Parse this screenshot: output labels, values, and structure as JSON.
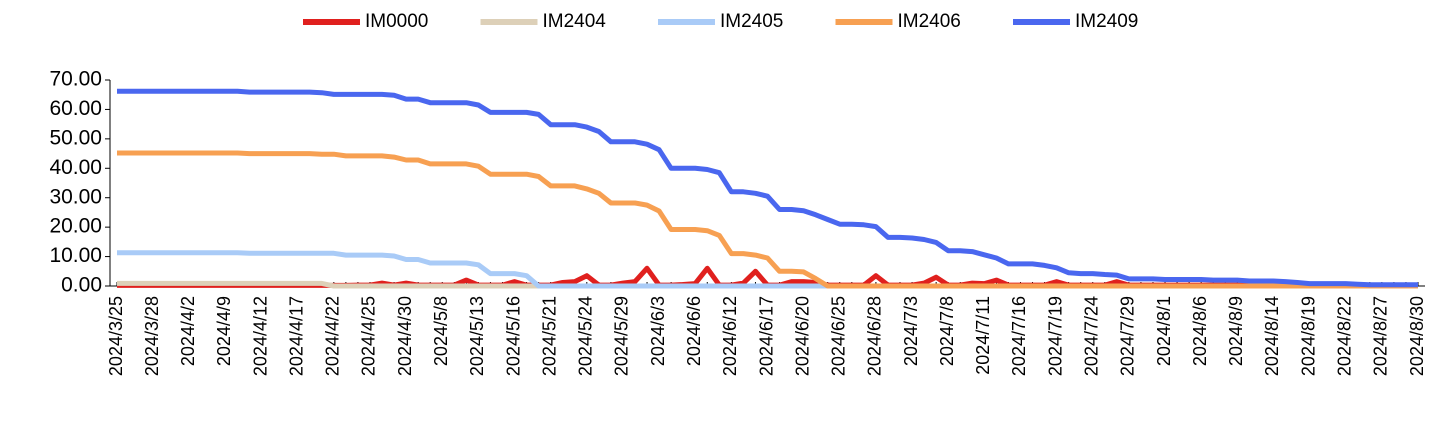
{
  "chart_data": {
    "type": "line",
    "categories": [
      "2024/3/25",
      null,
      null,
      "2024/3/28",
      null,
      null,
      "2024/4/2",
      null,
      null,
      "2024/4/9",
      null,
      null,
      "2024/4/12",
      null,
      null,
      "2024/4/17",
      null,
      null,
      "2024/4/22",
      null,
      null,
      "2024/4/25",
      null,
      null,
      "2024/4/30",
      null,
      null,
      "2024/5/8",
      null,
      null,
      "2024/5/13",
      null,
      null,
      "2024/5/16",
      null,
      null,
      "2024/5/21",
      null,
      null,
      "2024/5/24",
      null,
      null,
      "2024/5/29",
      null,
      null,
      "2024/6/3",
      null,
      null,
      "2024/6/6",
      null,
      null,
      "2024/6/12",
      null,
      null,
      "2024/6/17",
      null,
      null,
      "2024/6/20",
      null,
      null,
      "2024/6/25",
      null,
      null,
      "2024/6/28",
      null,
      null,
      "2024/7/3",
      null,
      null,
      "2024/7/8",
      null,
      null,
      "2024/7/11",
      null,
      null,
      "2024/7/16",
      null,
      null,
      "2024/7/19",
      null,
      null,
      "2024/7/24",
      null,
      null,
      "2024/7/29",
      null,
      null,
      "2024/8/1",
      null,
      null,
      "2024/8/6",
      null,
      null,
      "2024/8/9",
      null,
      null,
      "2024/8/14",
      null,
      null,
      "2024/8/19",
      null,
      null,
      "2024/8/22",
      null,
      null,
      "2024/8/27",
      null,
      null,
      "2024/8/30"
    ],
    "series": [
      {
        "name": "IM0000",
        "color": "#e0201e",
        "values": [
          0.2,
          0.2,
          0.2,
          0.2,
          0.2,
          0.2,
          0.2,
          0.2,
          0.2,
          0.2,
          0.2,
          0.2,
          0.2,
          0.2,
          0.2,
          0.2,
          0.2,
          0.2,
          0.2,
          0.2,
          0.3,
          0.3,
          1,
          0.3,
          1,
          0.3,
          0.3,
          0.3,
          0.3,
          2,
          0.3,
          0.3,
          0.3,
          1.5,
          0.3,
          0.3,
          0.3,
          1.2,
          1.5,
          3.5,
          0.3,
          0.3,
          1,
          1.5,
          6,
          0.3,
          0.3,
          0.5,
          0.8,
          6,
          0.3,
          0.3,
          1,
          5,
          0.3,
          0.3,
          1.5,
          1.5,
          1.2,
          0.3,
          0.3,
          0.3,
          0.3,
          3.5,
          0.3,
          0.3,
          0.3,
          1,
          3,
          0.3,
          0.3,
          1,
          0.8,
          2,
          0.3,
          0.3,
          0.3,
          0.3,
          1.5,
          0.3,
          0.3,
          0.3,
          0.3,
          1.5,
          0.3,
          0.3,
          0.3,
          0.3,
          0.3,
          0.3,
          0.3,
          0.3,
          0.3,
          0.3,
          0.3,
          0.3,
          0.3,
          0.3,
          0.3,
          0.3,
          0.3,
          0.3,
          0.3,
          0.3,
          0.3,
          0.3,
          0.3,
          0.3,
          0.3
        ]
      },
      {
        "name": "IM2404",
        "color": "#ddd0b8",
        "values": [
          0.9,
          0.9,
          0.9,
          0.9,
          0.9,
          0.9,
          0.9,
          0.9,
          0.9,
          0.9,
          0.9,
          0.9,
          0.9,
          0.9,
          0.9,
          0.9,
          0.9,
          0.9,
          0,
          0,
          0,
          0,
          0,
          0,
          0,
          0,
          0,
          0,
          0,
          0,
          0,
          0,
          0,
          0,
          0,
          0,
          0,
          0,
          0,
          0,
          0,
          0,
          0,
          0,
          0,
          0,
          0,
          0,
          0,
          0,
          0,
          0,
          0,
          0,
          0,
          0,
          0,
          0,
          0,
          0,
          0,
          0,
          0,
          0,
          0,
          0,
          0,
          0,
          0,
          0,
          0,
          0,
          0,
          0,
          0,
          0,
          0,
          0,
          0,
          0,
          0,
          0,
          0,
          0,
          0,
          0,
          0,
          0,
          0,
          0,
          0,
          0,
          0,
          0,
          0,
          0,
          0,
          0,
          0,
          0,
          0,
          0,
          0,
          0,
          0,
          0,
          0,
          0,
          0
        ]
      },
      {
        "name": "IM2405",
        "color": "#a9cbf7",
        "values": [
          11.3,
          11.3,
          11.3,
          11.3,
          11.3,
          11.3,
          11.3,
          11.3,
          11.3,
          11.3,
          11.3,
          11.1,
          11.1,
          11.1,
          11.1,
          11.1,
          11.1,
          11.1,
          11.1,
          10.5,
          10.5,
          10.5,
          10.5,
          10.2,
          9,
          9,
          7.8,
          7.8,
          7.8,
          7.8,
          7.2,
          4.2,
          4.2,
          4.2,
          3.5,
          0,
          0,
          0,
          0,
          0,
          0,
          0,
          0,
          0,
          0,
          0,
          0,
          0,
          0,
          0,
          0,
          0,
          0,
          0,
          0,
          0,
          0,
          0,
          0,
          0,
          0,
          0,
          0,
          0,
          0,
          0,
          0,
          0,
          0,
          0,
          0,
          0,
          0,
          0,
          0,
          0,
          0,
          0,
          0,
          0,
          0,
          0,
          0,
          0,
          0,
          0,
          0,
          0,
          0,
          0,
          0,
          0,
          0,
          0,
          0,
          0,
          0,
          0,
          0,
          0,
          0,
          0,
          0,
          0,
          0,
          0,
          0,
          0,
          0
        ]
      },
      {
        "name": "IM2406",
        "color": "#f7a052",
        "values": [
          45.2,
          45.2,
          45.2,
          45.2,
          45.2,
          45.2,
          45.2,
          45.2,
          45.2,
          45.2,
          45.2,
          45,
          45,
          45,
          45,
          45,
          45,
          44.8,
          44.8,
          44.2,
          44.2,
          44.2,
          44.2,
          43.8,
          42.8,
          42.8,
          41.5,
          41.5,
          41.5,
          41.5,
          40.7,
          38,
          38,
          38,
          38,
          37.2,
          34,
          34,
          34,
          33,
          31.5,
          28.2,
          28.2,
          28.2,
          27.5,
          25.5,
          19.2,
          19.2,
          19.2,
          18.8,
          17.2,
          11,
          11,
          10.5,
          9.5,
          5,
          5,
          4.8,
          2.5,
          0,
          0,
          0,
          0,
          0,
          0,
          0,
          0,
          0,
          0,
          0,
          0,
          0,
          0,
          0,
          0,
          0,
          0,
          0,
          0,
          0,
          0,
          0,
          0,
          0,
          0,
          0,
          0,
          0,
          0,
          0,
          0,
          0,
          0,
          0,
          0,
          0,
          0,
          0,
          0,
          0,
          0,
          0,
          0,
          0,
          0,
          0,
          0,
          0,
          0
        ]
      },
      {
        "name": "IM2409",
        "color": "#4a67ef",
        "values": [
          66.2,
          66.2,
          66.2,
          66.2,
          66.2,
          66.2,
          66.2,
          66.2,
          66.2,
          66.2,
          66.2,
          65.9,
          65.9,
          65.9,
          65.9,
          65.9,
          65.9,
          65.7,
          65.1,
          65.1,
          65.1,
          65.1,
          65.1,
          64.8,
          63.5,
          63.5,
          62.3,
          62.3,
          62.3,
          62.3,
          61.5,
          59,
          59,
          59,
          59,
          58.3,
          54.8,
          54.8,
          54.8,
          54,
          52.5,
          49,
          49,
          49,
          48.2,
          46.3,
          40,
          40,
          40,
          39.6,
          38.5,
          32,
          32,
          31.5,
          30.5,
          26,
          26,
          25.6,
          24.2,
          22.6,
          21,
          21,
          20.8,
          20.2,
          16.5,
          16.5,
          16.3,
          15.8,
          14.8,
          12,
          12,
          11.7,
          10.6,
          9.5,
          7.5,
          7.5,
          7.5,
          7,
          6.2,
          4.5,
          4.2,
          4.2,
          3.9,
          3.7,
          2.4,
          2.4,
          2.4,
          2.2,
          2.2,
          2.2,
          2.2,
          2,
          2,
          2,
          1.7,
          1.7,
          1.7,
          1.5,
          1.2,
          0.8,
          0.8,
          0.8,
          0.8,
          0.6,
          0.4,
          0.4,
          0.4,
          0.4,
          0.4
        ]
      }
    ],
    "ylim": [
      0,
      70
    ],
    "yticks": [
      {
        "value": 0,
        "label": "0.00"
      },
      {
        "value": 10,
        "label": "10.00"
      },
      {
        "value": 20,
        "label": "20.00"
      },
      {
        "value": 30,
        "label": "30.00"
      },
      {
        "value": 40,
        "label": "40.00"
      },
      {
        "value": 50,
        "label": "50.00"
      },
      {
        "value": 60,
        "label": "60.00"
      },
      {
        "value": 70,
        "label": "70.00"
      }
    ],
    "grid": false,
    "legend": "top"
  }
}
